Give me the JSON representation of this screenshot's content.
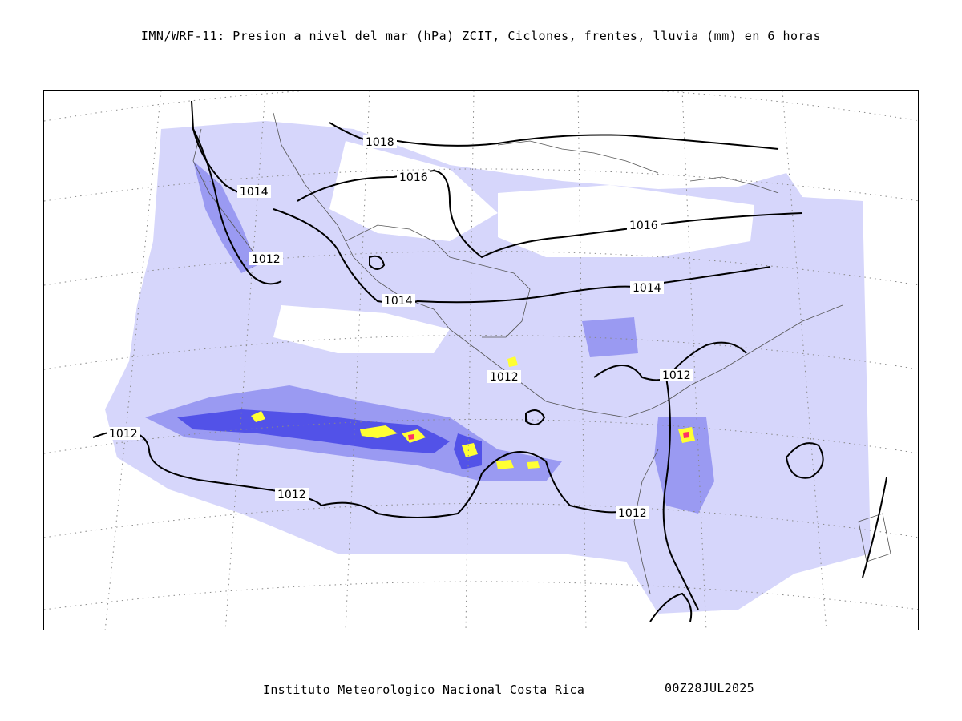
{
  "header": {
    "title": "IMN/WRF-11: Presion a nivel del mar (hPa) ZCIT, Ciclones, frentes, lluvia (mm) en 6 horas"
  },
  "footer": {
    "institution": "Instituto Meteorologico Nacional Costa Rica",
    "datetime": "00Z28JUL2025"
  },
  "map": {
    "isobar_labels": {
      "p1018": "1018",
      "p1016a": "1016",
      "p1016b": "1016",
      "p1014a": "1014",
      "p1014b": "1014",
      "p1014c": "1014",
      "p1012a": "1012",
      "p1012b": "1012",
      "p1012c": "1012",
      "p1012d": "1012",
      "p1012e": "1012",
      "p1012f": "1012"
    },
    "colors": {
      "rain_light": "#d6d6fb",
      "rain_moderate": "#9a9af2",
      "rain_heavy": "#5252e8",
      "rain_very_heavy": "#1a1ae0",
      "rain_intense": "#ffff33",
      "rain_extreme": "#ff3366",
      "isobar": "#000000",
      "coast": "#555555",
      "grid": "#888888"
    }
  }
}
